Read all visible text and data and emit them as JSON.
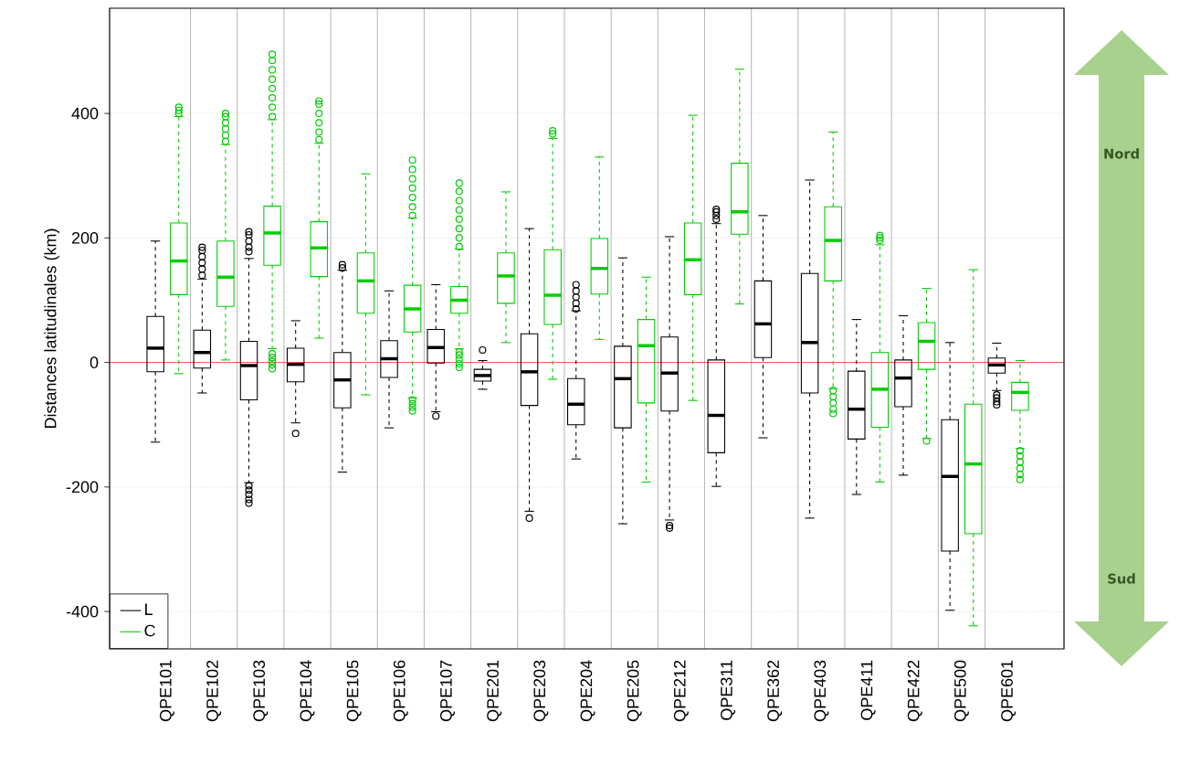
{
  "chart_data": {
    "type": "box",
    "ylabel": "Distances latitudinales (km)",
    "categories": [
      "QPE101",
      "QPE102",
      "QPE103",
      "QPE104",
      "QPE105",
      "QPE106",
      "QPE107",
      "QPE201",
      "QPE203",
      "QPE204",
      "QPE205",
      "QPE212",
      "QPE311",
      "QPE362",
      "QPE403",
      "QPE411",
      "QPE422",
      "QPE500",
      "QPE601"
    ],
    "ylim": [
      -460,
      569
    ],
    "yticks": [
      -400,
      -200,
      0,
      200,
      400
    ],
    "grid": true,
    "legend": "bottom left",
    "marker": "circle",
    "ref_lines": [
      {
        "axis": "y",
        "value": 0,
        "color": "#ff0000"
      }
    ],
    "annotations": [
      "Nord",
      "Sud"
    ],
    "series": [
      {
        "name": "L",
        "color": "#000000",
        "boxes": [
          {
            "low": -128,
            "q1": -15,
            "median": 23,
            "q3": 74,
            "high": 195
          },
          {
            "low": -49,
            "q1": -9,
            "median": 16,
            "q3": 52,
            "high": 134,
            "outliers": [
              140,
              150,
              160,
              170,
              180,
              185
            ]
          },
          {
            "low": -193,
            "q1": -60,
            "median": -5,
            "q3": 34,
            "high": 167,
            "outliers": [
              178,
              185,
              195,
              205,
              210,
              -198,
              -205,
              -212,
              -220,
              -226
            ]
          },
          {
            "low": -97,
            "q1": -31,
            "median": -3,
            "q3": 23,
            "high": 67,
            "outliers": [
              -114
            ]
          },
          {
            "low": -176,
            "q1": -73,
            "median": -28,
            "q3": 16,
            "high": 148,
            "outliers": [
              152,
              157
            ]
          },
          {
            "low": -105,
            "q1": -24,
            "median": 6,
            "q3": 35,
            "high": 115
          },
          {
            "low": -79,
            "q1": -1,
            "median": 24,
            "q3": 53,
            "high": 125,
            "outliers": [
              -86
            ]
          },
          {
            "low": -43,
            "q1": -30,
            "median": -21,
            "q3": -11,
            "high": 3,
            "outliers": [
              20
            ]
          },
          {
            "low": -239,
            "q1": -69,
            "median": -15,
            "q3": 46,
            "high": 215,
            "outliers": [
              -250
            ]
          },
          {
            "low": -155,
            "q1": -100,
            "median": -67,
            "q3": -26,
            "high": 83,
            "outliers": [
              86,
              95,
              105,
              115,
              125
            ]
          },
          {
            "low": -259,
            "q1": -105,
            "median": -26,
            "q3": 26,
            "high": 168
          },
          {
            "low": -253,
            "q1": -78,
            "median": -17,
            "q3": 41,
            "high": 202,
            "outliers": [
              -262,
              -266
            ]
          },
          {
            "low": -199,
            "q1": -145,
            "median": -85,
            "q3": 4,
            "high": 223,
            "outliers": [
              230,
              236,
              242,
              246
            ]
          },
          {
            "low": -121,
            "q1": 8,
            "median": 62,
            "q3": 131,
            "high": 236
          },
          {
            "low": -250,
            "q1": -49,
            "median": 32,
            "q3": 143,
            "high": 293
          },
          {
            "low": -212,
            "q1": -123,
            "median": -75,
            "q3": -14,
            "high": 69
          },
          {
            "low": -181,
            "q1": -71,
            "median": -25,
            "q3": 4,
            "high": 75
          },
          {
            "low": -398,
            "q1": -303,
            "median": -183,
            "q3": -92,
            "high": 32
          },
          {
            "low": -45,
            "q1": -17,
            "median": -4,
            "q3": 7,
            "high": 31,
            "outliers": [
              -52,
              -57,
              -63,
              -68
            ]
          }
        ]
      },
      {
        "name": "C",
        "color": "#00cc00",
        "boxes": [
          {
            "low": -18,
            "q1": 109,
            "median": 163,
            "q3": 224,
            "high": 395,
            "outliers": [
              400,
              405,
              410
            ]
          },
          {
            "low": 4,
            "q1": 90,
            "median": 137,
            "q3": 195,
            "high": 350,
            "outliers": [
              355,
              365,
              375,
              385,
              395,
              400
            ]
          },
          {
            "low": 22,
            "q1": 156,
            "median": 208,
            "q3": 251,
            "high": 390,
            "outliers": [
              395,
              410,
              425,
              440,
              455,
              470,
              485,
              495,
              -10,
              -4,
              2,
              8,
              14
            ]
          },
          {
            "low": 39,
            "q1": 138,
            "median": 184,
            "q3": 226,
            "high": 352,
            "outliers": [
              358,
              370,
              385,
              400,
              415,
              420
            ]
          },
          {
            "low": -52,
            "q1": 79,
            "median": 131,
            "q3": 176,
            "high": 303
          },
          {
            "low": -57,
            "q1": 49,
            "median": 86,
            "q3": 124,
            "high": 232,
            "outliers": [
              236,
              250,
              265,
              280,
              295,
              310,
              325,
              -60,
              -66,
              -72,
              -78
            ]
          },
          {
            "low": 22,
            "q1": 79,
            "median": 100,
            "q3": 122,
            "high": 182,
            "outliers": [
              186,
              200,
              215,
              230,
              245,
              260,
              275,
              288,
              -8,
              -2,
              5,
              12,
              17
            ]
          },
          {
            "low": 32,
            "q1": 95,
            "median": 139,
            "q3": 176,
            "high": 274
          },
          {
            "low": -27,
            "q1": 61,
            "median": 108,
            "q3": 181,
            "high": 360,
            "outliers": [
              367,
              372
            ]
          },
          {
            "low": 37,
            "q1": 110,
            "median": 151,
            "q3": 199,
            "high": 330
          },
          {
            "low": -192,
            "q1": -65,
            "median": 27,
            "q3": 69,
            "high": 137
          },
          {
            "low": -61,
            "q1": 109,
            "median": 165,
            "q3": 224,
            "high": 397
          },
          {
            "low": 94,
            "q1": 206,
            "median": 242,
            "q3": 320,
            "high": 471
          },
          null,
          {
            "low": -42,
            "q1": 131,
            "median": 196,
            "q3": 250,
            "high": 370,
            "outliers": [
              -45,
              -55,
              -65,
              -75,
              -82
            ]
          },
          {
            "low": -192,
            "q1": -104,
            "median": -43,
            "q3": 16,
            "high": 189,
            "outliers": [
              196,
              200,
              204
            ]
          },
          {
            "low": -122,
            "q1": -11,
            "median": 34,
            "q3": 64,
            "high": 119,
            "outliers": [
              -126
            ]
          },
          {
            "low": -423,
            "q1": -275,
            "median": -163,
            "q3": -67,
            "high": 149
          },
          {
            "low": -138,
            "q1": -77,
            "median": -48,
            "q3": -32,
            "high": 3,
            "outliers": [
              -142,
              -150,
              -160,
              -170,
              -180,
              -188
            ]
          }
        ]
      }
    ]
  }
}
